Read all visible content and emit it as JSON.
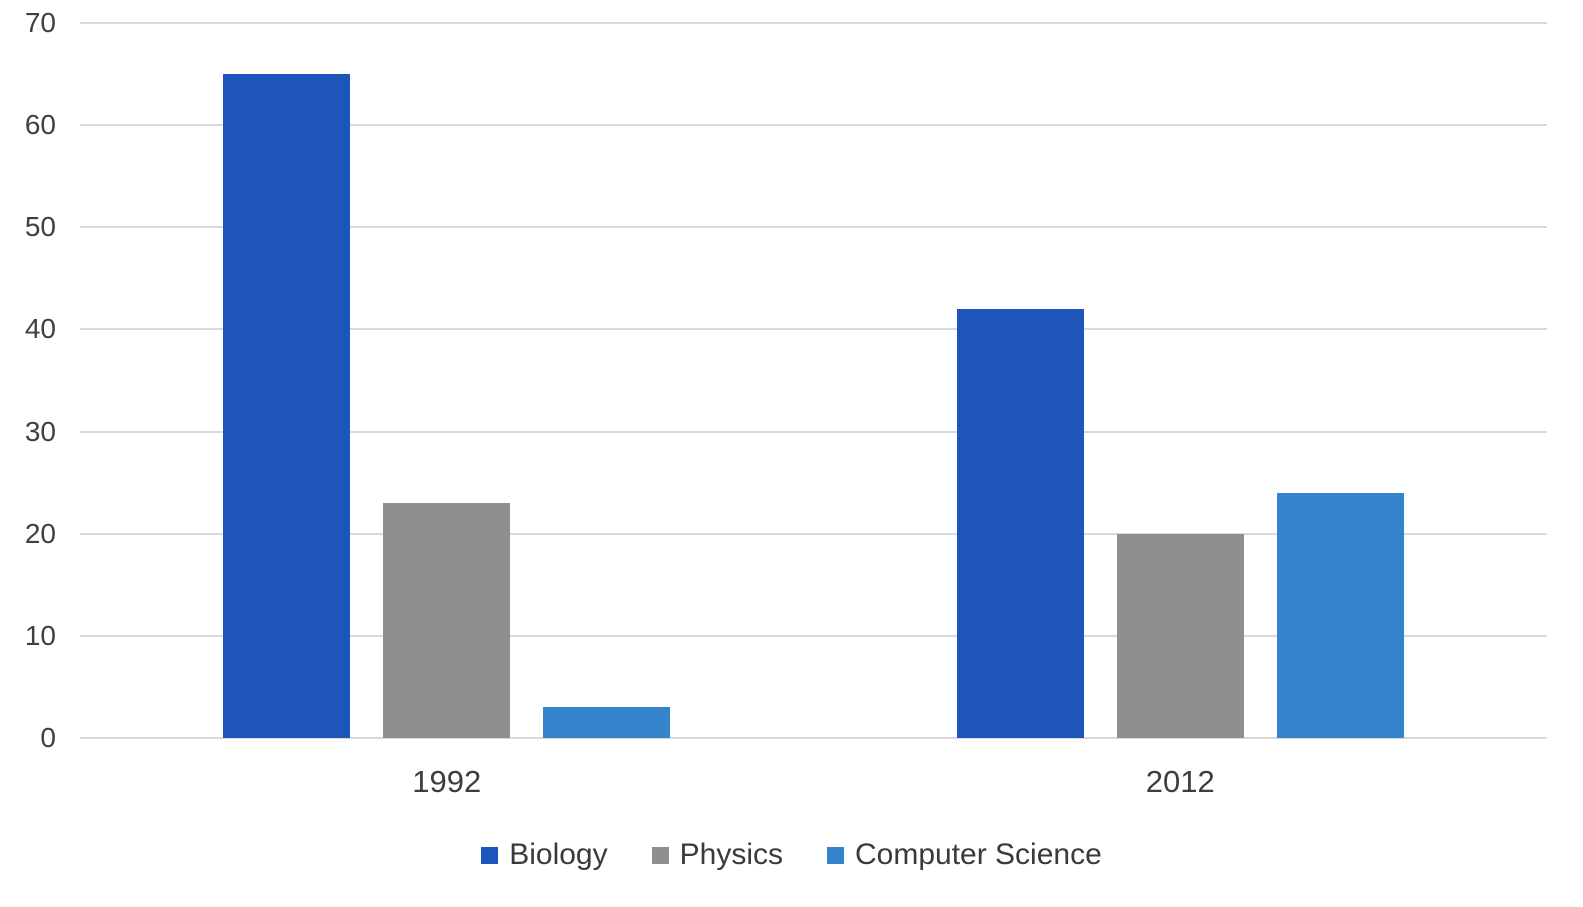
{
  "chart_data": {
    "type": "bar",
    "title": "",
    "xlabel": "",
    "ylabel": "",
    "categories": [
      "1992",
      "2012"
    ],
    "series": [
      {
        "name": "Biology",
        "color": "#1D55BB",
        "values": [
          65,
          42
        ]
      },
      {
        "name": "Physics",
        "color": "#8F8F8F",
        "values": [
          23,
          20
        ]
      },
      {
        "name": "Computer Science",
        "color": "#3483CB",
        "values": [
          3,
          24
        ]
      }
    ],
    "ylim": [
      0,
      70
    ],
    "yticks": [
      0,
      10,
      20,
      30,
      40,
      50,
      60,
      70
    ],
    "grid": true,
    "legend_position": "bottom",
    "colors": {
      "gridline": "#D9D9D9",
      "axis_text": "#404040",
      "legend_text": "#3A3A3A",
      "background": "#FFFFFF"
    }
  }
}
